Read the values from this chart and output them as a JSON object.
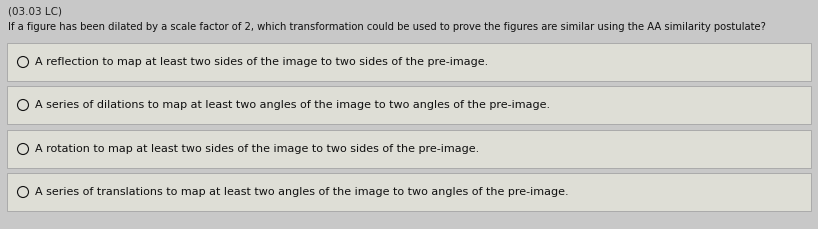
{
  "label": "(03.03 LC)",
  "question": "If a figure has been dilated by a scale factor of 2, which transformation could be used to prove the figures are similar using the AA similarity postulate?",
  "options": [
    "A reflection to map at least two sides of the image to two sides of the pre-image.",
    "A series of dilations to map at least two angles of the image to two angles of the pre-image.",
    "A rotation to map at least two sides of the image to two sides of the pre-image.",
    "A series of translations to map at least two angles of the image to two angles of the pre-image."
  ],
  "bg_color": "#c8c8c8",
  "box_bg_color": "#deded6",
  "box_border_color": "#aaaaaa",
  "label_color": "#222222",
  "question_color": "#111111",
  "option_color": "#111111",
  "label_fontsize": 7.5,
  "question_fontsize": 7.2,
  "option_fontsize": 8.0,
  "fig_width": 8.18,
  "fig_height": 2.29,
  "dpi": 100
}
